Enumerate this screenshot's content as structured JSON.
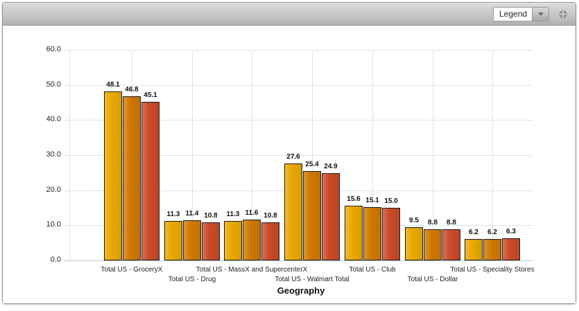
{
  "widget": {
    "header": {
      "legend_label": "Legend"
    }
  },
  "chart_data": {
    "type": "bar",
    "title": "",
    "xlabel": "Geography",
    "ylabel": "",
    "ylim": [
      0,
      60
    ],
    "ytick_step": 10,
    "grid": true,
    "legend": "collapsed dropdown at top-right",
    "data_labels": true,
    "categories": [
      "Total US - GroceryX",
      "Total US - Drug",
      "Total US - MassX and SupercenterX",
      "Total US - Walmart Total",
      "Total US - Club",
      "Total US - Dollar",
      "Total US - Speciality Stores"
    ],
    "series": [
      {
        "color": "#E9A800",
        "values": [
          48.1,
          11.3,
          11.3,
          27.6,
          15.6,
          9.5,
          6.2
        ]
      },
      {
        "color": "#D07800",
        "values": [
          46.8,
          11.4,
          11.6,
          25.4,
          15.1,
          8.8,
          6.2
        ]
      },
      {
        "color": "#CB4A28",
        "values": [
          45.1,
          10.8,
          10.8,
          24.9,
          15.0,
          8.8,
          6.3
        ]
      }
    ],
    "colors": {
      "gridline": "#D8E6F0",
      "axis_line": "#B9C8D2",
      "bar_border": "#1C1C1C"
    }
  }
}
